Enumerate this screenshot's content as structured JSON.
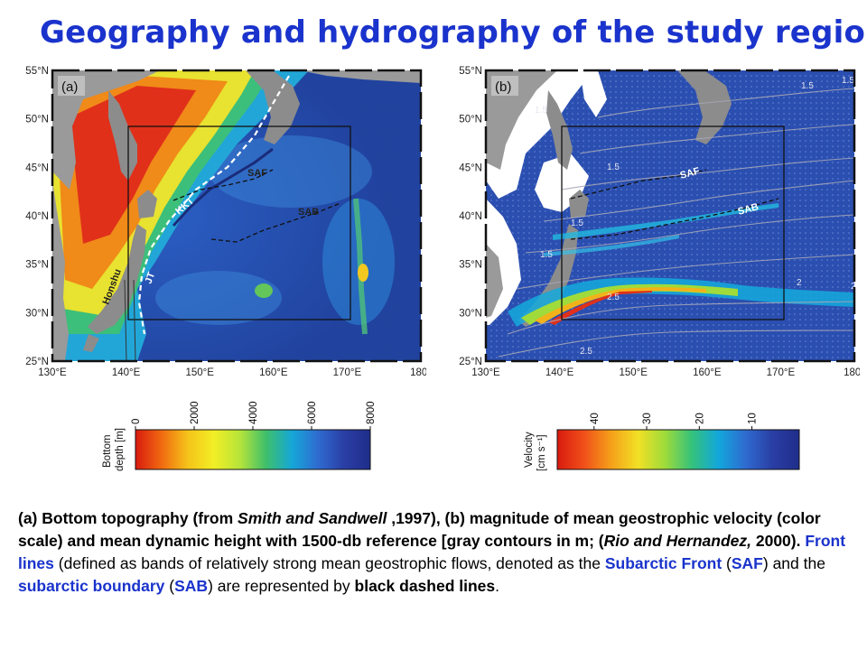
{
  "title": "Geography and hydrography of the study region",
  "panel_a": {
    "letter": "(a)",
    "lat_labels": [
      "55°N",
      "50°N",
      "45°N",
      "40°N",
      "35°N",
      "30°N",
      "25°N"
    ],
    "lon_labels": [
      "130°E",
      "140°E",
      "150°E",
      "160°E",
      "170°E",
      "180°"
    ],
    "feature_labels": {
      "saf": "SAF",
      "sab": "SAB",
      "kkt": "KKT",
      "jt": "JT",
      "honshu": "Honshu"
    }
  },
  "panel_b": {
    "letter": "(b)",
    "lat_labels": [
      "55°N",
      "50°N",
      "45°N",
      "40°N",
      "35°N",
      "30°N",
      "25°N"
    ],
    "lon_labels": [
      "130°E",
      "140°E",
      "150°E",
      "160°E",
      "170°E",
      "180°"
    ],
    "feature_labels": {
      "saf": "SAF",
      "sab": "SAB"
    },
    "contour_labels": [
      "1.5",
      "1.5",
      "1.5",
      "1.5",
      "2",
      "2.5",
      "2",
      "2.5",
      "1.5",
      "1.5"
    ]
  },
  "colorbar_a": {
    "label_line1": "Bottom",
    "label_line2": "depth [m]",
    "ticks": [
      "0",
      "2000",
      "4000",
      "6000",
      "8000"
    ],
    "colors": [
      "#d91a0f",
      "#f06a10",
      "#f5c31a",
      "#f2ee25",
      "#b6e43a",
      "#3fbf6a",
      "#15a7d7",
      "#2f6bd0",
      "#2a3ea5",
      "#1f2d8a"
    ]
  },
  "colorbar_b": {
    "label_line1": "Velocity",
    "label_line2": "[cm s⁻¹]",
    "ticks": [
      "40",
      "30",
      "20",
      "10"
    ],
    "colors": [
      "#d91a0f",
      "#f0501a",
      "#f5a01a",
      "#f2e025",
      "#9fdb3a",
      "#35c27a",
      "#12a7dc",
      "#2f6bd0",
      "#2a3ea5",
      "#1f2d8a"
    ]
  },
  "caption": {
    "p1": "(a) Bottom topography (from ",
    "p2": "Smith and Sandwell",
    "p3": " ,1997), (b) magnitude of mean geostrophic velocity (color scale) and mean dynamic height with 1500-db reference [gray contours in m; (",
    "p4": "Rio and Hernandez,",
    "p5": " 2000). ",
    "p6": "Front lines",
    "p7": " (defined as bands of relatively strong mean geostrophic flows, denoted as the ",
    "p8": "Subarctic Front",
    "p9": " (",
    "p10": "SAF",
    "p11": ") and the ",
    "p12": "subarctic boundary",
    "p13": " (",
    "p14": "SAB",
    "p15": ") are represented by ",
    "p16": "black dashed lines",
    "p17": "."
  }
}
